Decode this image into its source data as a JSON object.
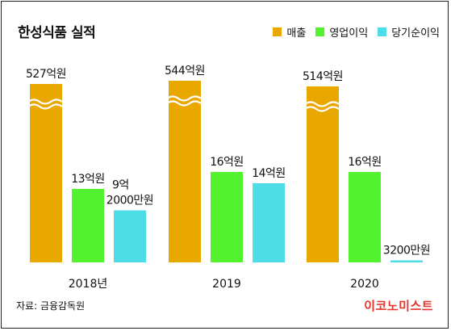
{
  "title": "한성식품 실적",
  "source": "자료: 금융감독원",
  "logo": "이코노미스트",
  "colors": {
    "revenue": "#E8A800",
    "operating": "#52F22F",
    "net": "#4DDDE6",
    "logo": "#E8342A"
  },
  "chart_data": {
    "type": "bar",
    "unit": "억원",
    "categories": [
      "2018년",
      "2019",
      "2020"
    ],
    "series": [
      {
        "name": "매출",
        "values": [
          527,
          544,
          514
        ],
        "labels": [
          "527억원",
          "544억원",
          "514억원"
        ]
      },
      {
        "name": "영업이익",
        "values": [
          13,
          16,
          16
        ],
        "labels": [
          "13억원",
          "16억원",
          "16억원"
        ]
      },
      {
        "name": "당기순이익",
        "values": [
          9.2,
          14,
          0.32
        ],
        "labels": [
          [
            "9억",
            "2000만원"
          ],
          "14억원",
          "3200만원"
        ]
      }
    ],
    "legend_position": "top-right",
    "revenue_axis_break": true,
    "grid": false
  }
}
